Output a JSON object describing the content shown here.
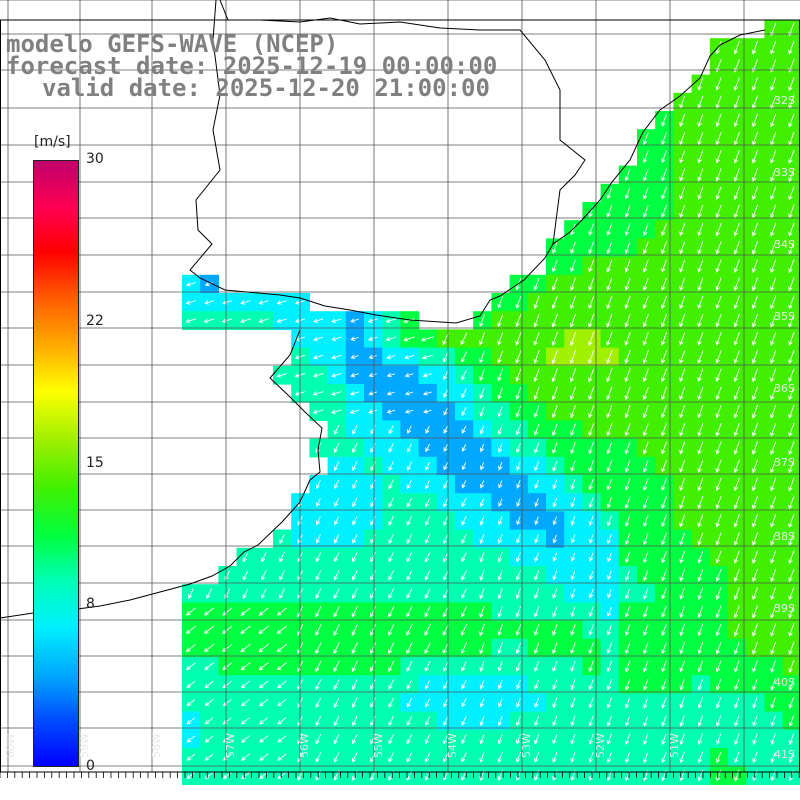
{
  "title": {
    "model": "modelo GEFS-WAVE (NCEP)",
    "forecast": "forecast date: 2025-12-19 00:00:00",
    "valid": "valid date: 2025-12-20 21:00:00"
  },
  "colorbar": {
    "unit": "[m/s]",
    "ticks": [
      {
        "value": 30,
        "label": "30"
      },
      {
        "value": 22,
        "label": "22"
      },
      {
        "value": 15,
        "label": "15"
      },
      {
        "value": 8,
        "label": "8"
      },
      {
        "value": 0,
        "label": "0"
      }
    ],
    "range": [
      0,
      30
    ],
    "colors": [
      "#0000ff",
      "#0050ff",
      "#00a8ff",
      "#00f0ff",
      "#00ffb0",
      "#00ff40",
      "#40f000",
      "#a0f000",
      "#ffff00",
      "#ffb000",
      "#ff6000",
      "#ff0000",
      "#ff0050",
      "#c0006c"
    ]
  },
  "map": {
    "lon_labels": [
      "60W",
      "59W",
      "58W",
      "57W",
      "56W",
      "55W",
      "54W",
      "53W",
      "52W",
      "51W"
    ],
    "lat_labels": [
      "32S",
      "33S",
      "34S",
      "35S",
      "36S",
      "37S",
      "38S",
      "39S",
      "40S",
      "41S"
    ],
    "grid": true,
    "quantity": "wind speed with direction arrows"
  }
}
